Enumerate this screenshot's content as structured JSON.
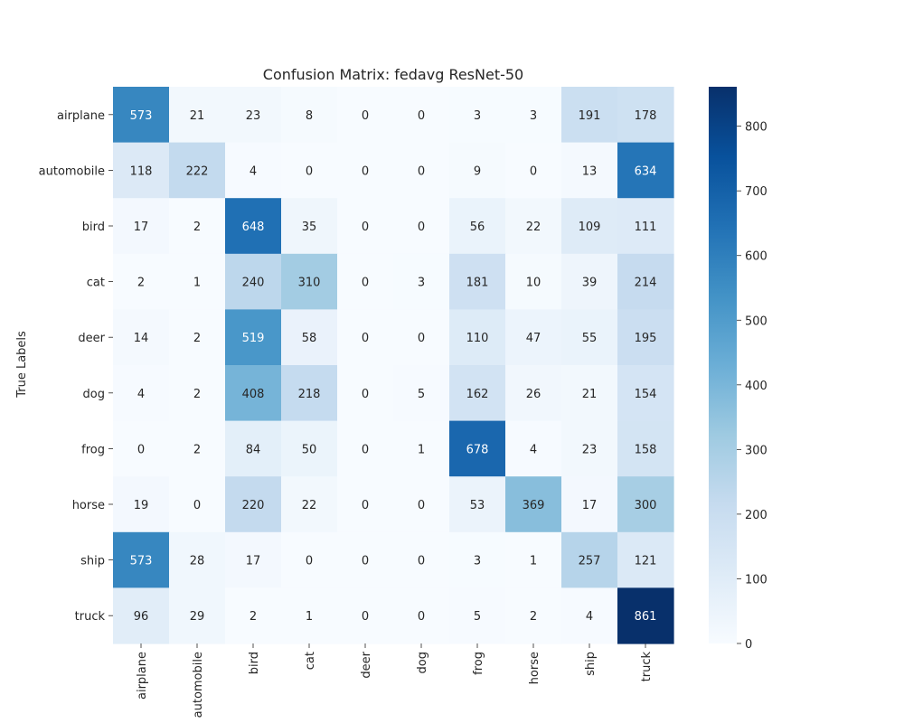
{
  "chart_data": {
    "type": "heatmap",
    "title": "Confusion Matrix: fedavg ResNet-50",
    "ylabel": "True Labels",
    "xlabel": "",
    "row_labels": [
      "airplane",
      "automobile",
      "bird",
      "cat",
      "deer",
      "dog",
      "frog",
      "horse",
      "ship",
      "truck"
    ],
    "col_labels": [
      "airplane",
      "automobile",
      "bird",
      "cat",
      "deer",
      "dog",
      "frog",
      "horse",
      "ship",
      "truck"
    ],
    "values": [
      [
        573,
        21,
        23,
        8,
        0,
        0,
        3,
        3,
        191,
        178
      ],
      [
        118,
        222,
        4,
        0,
        0,
        0,
        9,
        0,
        13,
        634
      ],
      [
        17,
        2,
        648,
        35,
        0,
        0,
        56,
        22,
        109,
        111
      ],
      [
        2,
        1,
        240,
        310,
        0,
        3,
        181,
        10,
        39,
        214
      ],
      [
        14,
        2,
        519,
        58,
        0,
        0,
        110,
        47,
        55,
        195
      ],
      [
        4,
        2,
        408,
        218,
        0,
        5,
        162,
        26,
        21,
        154
      ],
      [
        0,
        2,
        84,
        50,
        0,
        1,
        678,
        4,
        23,
        158
      ],
      [
        19,
        0,
        220,
        22,
        0,
        0,
        53,
        369,
        17,
        300
      ],
      [
        573,
        28,
        17,
        0,
        0,
        0,
        3,
        1,
        257,
        121
      ],
      [
        96,
        29,
        2,
        1,
        0,
        0,
        5,
        2,
        4,
        861
      ]
    ],
    "colorbar": {
      "min": 0,
      "max": 861,
      "ticks": [
        0,
        100,
        200,
        300,
        400,
        500,
        600,
        700,
        800
      ]
    },
    "colormap": "Blues",
    "colormap_stops": [
      "#f7fbff",
      "#deebf7",
      "#c6dbef",
      "#9ecae1",
      "#6baed6",
      "#4292c6",
      "#2171b5",
      "#08519c",
      "#08306b"
    ],
    "annotation_light_color": "#ffffff",
    "annotation_dark_color": "#262626"
  }
}
